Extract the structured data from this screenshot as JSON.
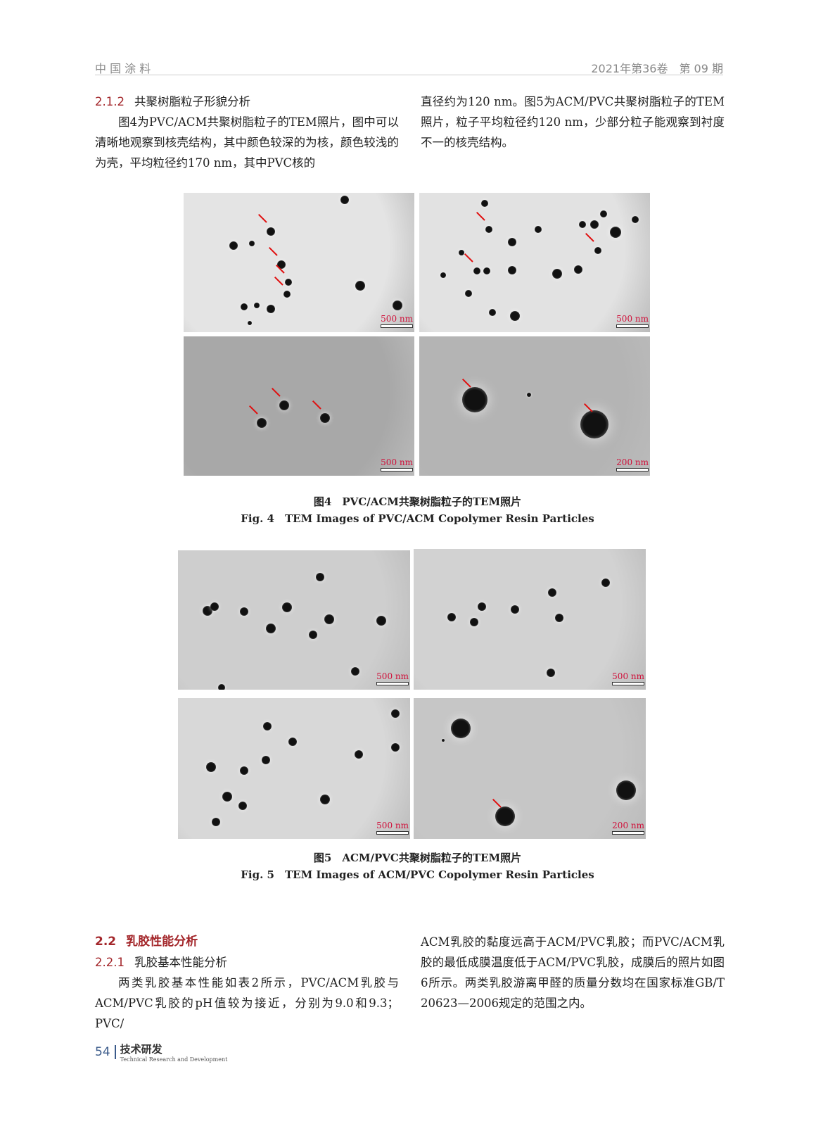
{
  "header": {
    "journal": "中 国 涂 料",
    "issue": "2021年第36卷　第 09 期"
  },
  "section_212": {
    "number": "2.1.2",
    "title": "共聚树脂粒子形貌分析"
  },
  "left_top": {
    "para": "图4为PVC/ACM共聚树脂粒子的TEM照片，图中可以清晰地观察到核壳结构，其中颜色较深的为核，颜色较浅的为壳，平均粒径约170 nm，其中PVC核的"
  },
  "right_top": {
    "para": "直径约为120 nm。图5为ACM/PVC共聚树脂粒子的TEM照片，粒子平均粒径约120 nm，少部分粒子能观察到衬度不一的核壳结构。"
  },
  "fig4": {
    "scales": [
      "500 nm",
      "500 nm",
      "500 nm",
      "200 nm"
    ],
    "caption_cn": "图4　PVC/ACM共聚树脂粒子的TEM照片",
    "caption_en": "Fig. 4　TEM Images of PVC/ACM Copolymer Resin Particles"
  },
  "fig5": {
    "scales": [
      "500 nm",
      "500 nm",
      "500 nm",
      "200 nm"
    ],
    "caption_cn": "图5　ACM/PVC共聚树脂粒子的TEM照片",
    "caption_en": "Fig. 5　TEM Images of ACM/PVC Copolymer Resin Particles"
  },
  "section_22": {
    "number": "2.2",
    "title": "乳胶性能分析"
  },
  "section_221": {
    "number": "2.2.1",
    "title": "乳胶基本性能分析"
  },
  "left_bottom": {
    "para": "两类乳胶基本性能如表2所示，PVC/ACM乳胶与ACM/PVC乳胶的pH值较为接近，分别为9.0和9.3；PVC/"
  },
  "right_bottom": {
    "para": "ACM乳胶的黏度远高于ACM/PVC乳胶；而PVC/ACM乳胶的最低成膜温度低于ACM/PVC乳胶，成膜后的照片如图6所示。两类乳胶游离甲醛的质量分数均在国家标准GB/T 20623—2006规定的范围之内。"
  },
  "footer": {
    "page": "54",
    "section_cn": "技术研发",
    "section_en": "Technical Research and Development"
  },
  "colors": {
    "accent": "#a3262a",
    "scale_label": "#d0103a",
    "arrow": "#e01010"
  }
}
